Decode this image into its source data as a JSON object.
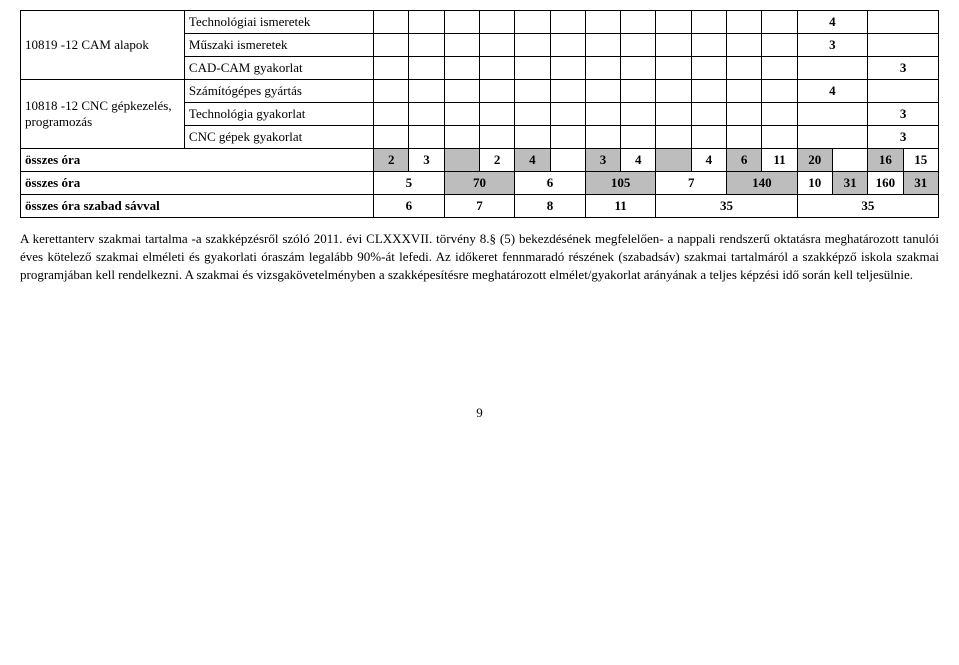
{
  "table": {
    "group1_label": "10819 -12 CAM alapok",
    "group1_rows": [
      {
        "sub": "Technológiai ismeretek",
        "cells": [
          "",
          "",
          "",
          "",
          "",
          "",
          "",
          "",
          "",
          "",
          "",
          "",
          "4",
          ""
        ]
      },
      {
        "sub": "Műszaki ismeretek",
        "cells": [
          "",
          "",
          "",
          "",
          "",
          "",
          "",
          "",
          "",
          "",
          "",
          "",
          "3",
          ""
        ]
      },
      {
        "sub": "CAD-CAM gyakorlat",
        "cells": [
          "",
          "",
          "",
          "",
          "",
          "",
          "",
          "",
          "",
          "",
          "",
          "",
          "",
          "3"
        ]
      }
    ],
    "group2_label": "10818 -12 CNC gépkezelés, programozás",
    "group2_rows": [
      {
        "sub": "Számítógépes gyártás",
        "cells": [
          "",
          "",
          "",
          "",
          "",
          "",
          "",
          "",
          "",
          "",
          "",
          "",
          "4",
          ""
        ]
      },
      {
        "sub": "Technológia gyakorlat",
        "cells": [
          "",
          "",
          "",
          "",
          "",
          "",
          "",
          "",
          "",
          "",
          "",
          "",
          "",
          "3"
        ]
      },
      {
        "sub": "CNC gépek gyakorlat",
        "cells": [
          "",
          "",
          "",
          "",
          "",
          "",
          "",
          "",
          "",
          "",
          "",
          "",
          "",
          "3"
        ]
      }
    ],
    "sum_rows": [
      {
        "label": "összes óra",
        "shaded_first": true,
        "cells": [
          {
            "v": "2",
            "s": true
          },
          {
            "v": "3",
            "s": false
          },
          {
            "v": "",
            "s": true
          },
          {
            "v": "2",
            "s": false
          },
          {
            "v": "4",
            "s": true
          },
          {
            "v": "",
            "s": false
          },
          {
            "v": "3",
            "s": true
          },
          {
            "v": "4",
            "s": false
          },
          {
            "v": "",
            "s": true
          },
          {
            "v": "4",
            "s": false
          },
          {
            "v": "6",
            "s": true
          },
          {
            "v": "11",
            "s": false
          },
          {
            "v": "20",
            "s": true
          },
          {
            "v": "",
            "s": false
          },
          {
            "v": "16",
            "s": true
          },
          {
            "v": "15",
            "s": false
          }
        ]
      },
      {
        "label": "összes óra",
        "shaded_first": false,
        "pairs": [
          "5",
          "70",
          "6",
          "105",
          "7",
          "140",
          "10",
          "31",
          "160",
          "31"
        ],
        "pair_shade": [
          false,
          true,
          false,
          true,
          false,
          true,
          false,
          true,
          false,
          true
        ]
      },
      {
        "label": "összes óra szabad sávval",
        "shaded_first": false,
        "pairs": [
          "6",
          "7",
          "8",
          "11",
          "35",
          "35"
        ],
        "pair_shade": [
          false,
          false,
          false,
          false,
          false,
          false
        ],
        "last_span": 4
      }
    ]
  },
  "paragraph": "A kerettanterv szakmai tartalma -a szakképzésről szóló 2011. évi CLXXXVII. törvény 8.§ (5) bekezdésének megfelelően- a nappali rendszerű oktatásra meghatározott tanulói éves kötelező szakmai elméleti és gyakorlati óraszám legalább 90%-át lefedi. Az időkeret fennmaradó részének (szabadsáv) szakmai tartalmáról a szakképző iskola szakmai programjában kell rendelkezni. A szakmai és vizsgakövetelményben a szakképesítésre meghatározott elmélet/gyakorlat arányának a teljes képzési idő során kell teljesülnie.",
  "page_number": "9"
}
